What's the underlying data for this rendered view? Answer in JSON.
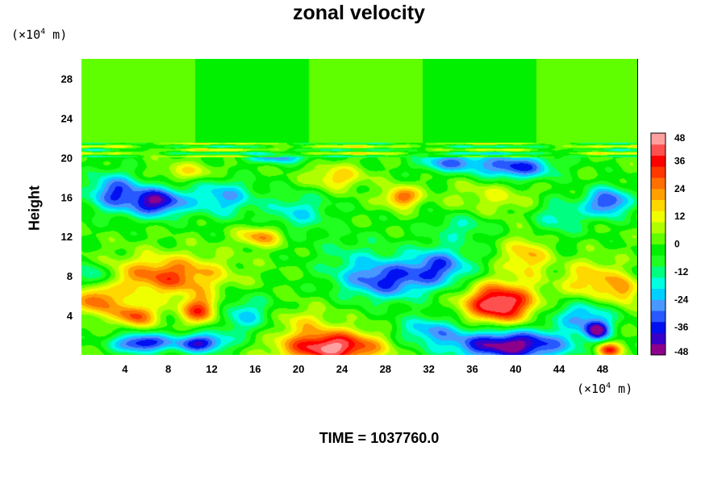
{
  "chart_data": {
    "type": "heatmap",
    "title": "zonal velocity",
    "ylabel": "Height",
    "y_unit": {
      "prefix": "(×10",
      "exponent": "4",
      "suffix": " m)"
    },
    "x_unit": {
      "prefix": "(×10",
      "exponent": "4",
      "suffix": " m)"
    },
    "footer": "TIME = 1037760.0",
    "xlim": [
      0,
      51.2
    ],
    "ylim": [
      0,
      30
    ],
    "x_ticks": [
      4,
      8,
      12,
      16,
      20,
      24,
      28,
      32,
      36,
      40,
      44,
      48
    ],
    "y_ticks": [
      4,
      8,
      12,
      16,
      20,
      24,
      28
    ],
    "colorbar": {
      "range": [
        -48,
        48
      ],
      "tick_values": [
        48,
        36,
        24,
        12,
        0,
        -12,
        -24,
        -36,
        -48
      ],
      "colors": [
        "#8c008c",
        "#3800c8",
        "#0010f0",
        "#2858ff",
        "#4898ff",
        "#00d0ff",
        "#00ffe0",
        "#00ff80",
        "#20ff20",
        "#00f000",
        "#60ff00",
        "#b0ff00",
        "#f0ff00",
        "#ffd800",
        "#ffa000",
        "#ff7000",
        "#ff3800",
        "#ff0000",
        "#ff5050",
        "#ffa0a0"
      ]
    },
    "features": [
      {
        "x": 26,
        "y": 26,
        "v": 0,
        "sx": 40,
        "sy": 6
      },
      {
        "x": 23,
        "y": 0.8,
        "v": 46,
        "sx": 4.5,
        "sy": 1.6
      },
      {
        "x": 38.5,
        "y": 5.2,
        "v": 47,
        "sx": 3.2,
        "sy": 2
      },
      {
        "x": 39.5,
        "y": 1,
        "v": -48,
        "sx": 5.5,
        "sy": 1.6
      },
      {
        "x": 8,
        "y": 8,
        "v": 30,
        "sx": 5,
        "sy": 2
      },
      {
        "x": 1.5,
        "y": 5.5,
        "v": 28,
        "sx": 2,
        "sy": 1.5
      },
      {
        "x": 5,
        "y": 4,
        "v": 30,
        "sx": 1.8,
        "sy": 1.2
      },
      {
        "x": 11,
        "y": 4.5,
        "v": 34,
        "sx": 1.8,
        "sy": 1.4
      },
      {
        "x": 5.5,
        "y": 1.2,
        "v": -40,
        "sx": 2.5,
        "sy": 1
      },
      {
        "x": 11,
        "y": 1.2,
        "v": -38,
        "sx": 2.5,
        "sy": 1
      },
      {
        "x": 7,
        "y": 15.5,
        "v": -42,
        "sx": 2.5,
        "sy": 1.5
      },
      {
        "x": 3,
        "y": 16.5,
        "v": -32,
        "sx": 2.5,
        "sy": 2
      },
      {
        "x": 13,
        "y": 16,
        "v": -24,
        "sx": 3,
        "sy": 2
      },
      {
        "x": 28,
        "y": 7.5,
        "v": -32,
        "sx": 4,
        "sy": 2
      },
      {
        "x": 33,
        "y": 9,
        "v": -30,
        "sx": 3,
        "sy": 2
      },
      {
        "x": 40,
        "y": 19,
        "v": -36,
        "sx": 3.5,
        "sy": 1.3
      },
      {
        "x": 34,
        "y": 19.5,
        "v": -28,
        "sx": 3,
        "sy": 1
      },
      {
        "x": 29.5,
        "y": 16,
        "v": 30,
        "sx": 1.5,
        "sy": 1
      },
      {
        "x": 23.5,
        "y": 18,
        "v": 18,
        "sx": 2.5,
        "sy": 1.2
      },
      {
        "x": 16.5,
        "y": 12,
        "v": 24,
        "sx": 2,
        "sy": 1
      },
      {
        "x": 41,
        "y": 10,
        "v": 20,
        "sx": 2,
        "sy": 2
      },
      {
        "x": 48.5,
        "y": 15.5,
        "v": -36,
        "sx": 2,
        "sy": 1.5
      },
      {
        "x": 47.5,
        "y": 2.5,
        "v": -40,
        "sx": 1.2,
        "sy": 1
      },
      {
        "x": 48.5,
        "y": 0.5,
        "v": 36,
        "sx": 1.2,
        "sy": 0.8
      },
      {
        "x": 47,
        "y": 7.5,
        "v": 20,
        "sx": 2.5,
        "sy": 2
      },
      {
        "x": 44,
        "y": 14,
        "v": -16,
        "sx": 2.5,
        "sy": 2
      },
      {
        "x": 20,
        "y": 14.5,
        "v": -18,
        "sx": 3,
        "sy": 2
      },
      {
        "x": 35,
        "y": 13,
        "v": -14,
        "sx": 3,
        "sy": 1.5
      },
      {
        "x": 15,
        "y": 4,
        "v": -20,
        "sx": 3,
        "sy": 2
      },
      {
        "x": 32,
        "y": 2.5,
        "v": -22,
        "sx": 3,
        "sy": 1.5
      },
      {
        "x": 46,
        "y": 4,
        "v": -24,
        "sx": 3,
        "sy": 1.5
      },
      {
        "x": 1,
        "y": 8,
        "v": -22,
        "sx": 1.5,
        "sy": 1.2
      },
      {
        "x": 50,
        "y": 6.5,
        "v": 22,
        "sx": 1.2,
        "sy": 1.5
      },
      {
        "x": 18,
        "y": 20,
        "v": -26,
        "sx": 3,
        "sy": 0.6
      },
      {
        "x": 10,
        "y": 18.5,
        "v": 14,
        "sx": 3,
        "sy": 1
      },
      {
        "x": 25,
        "y": 10,
        "v": -10,
        "sx": 4,
        "sy": 2.5
      },
      {
        "x": 20,
        "y": 3.5,
        "v": 12,
        "sx": 3,
        "sy": 1.5
      },
      {
        "x": 38,
        "y": 16,
        "v": 10,
        "sx": 4,
        "sy": 2
      }
    ]
  }
}
